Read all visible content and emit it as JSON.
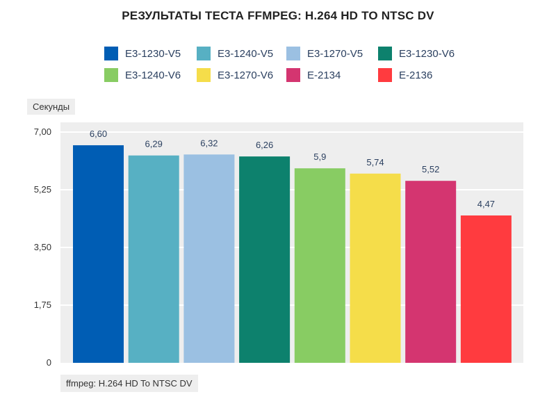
{
  "chart_data": {
    "type": "bar",
    "title": "РЕЗУЛЬТАТЫ ТЕСТА FFMPEG: H.264 HD TO NTSC DV",
    "ylabel": "Секунды",
    "xlabel": "ffmpeg: H.264 HD To NTSC DV",
    "ylim": [
      0,
      7.0
    ],
    "yticks": [
      "0",
      "1,75",
      "3,50",
      "5,25",
      "7,00"
    ],
    "ytick_values": [
      0,
      1.75,
      3.5,
      5.25,
      7.0
    ],
    "grid": true,
    "legend_position": "top",
    "series": [
      {
        "name": "E3-1230-V5",
        "value": 6.6,
        "label": "6,60",
        "color": "#005db4"
      },
      {
        "name": "E3-1240-V5",
        "value": 6.29,
        "label": "6,29",
        "color": "#57b0c3"
      },
      {
        "name": "E3-1270-V5",
        "value": 6.32,
        "label": "6,32",
        "color": "#9bc0e2"
      },
      {
        "name": "E3-1230-V6",
        "value": 6.26,
        "label": "6,26",
        "color": "#0d816d"
      },
      {
        "name": "E3-1240-V6",
        "value": 5.9,
        "label": "5,9",
        "color": "#88cc63"
      },
      {
        "name": "E3-1270-V6",
        "value": 5.74,
        "label": "5,74",
        "color": "#f5dd4a"
      },
      {
        "name": "E-2134",
        "value": 5.52,
        "label": "5,52",
        "color": "#d43570"
      },
      {
        "name": "E-2136",
        "value": 4.47,
        "label": "4,47",
        "color": "#ff3b3f"
      }
    ]
  }
}
